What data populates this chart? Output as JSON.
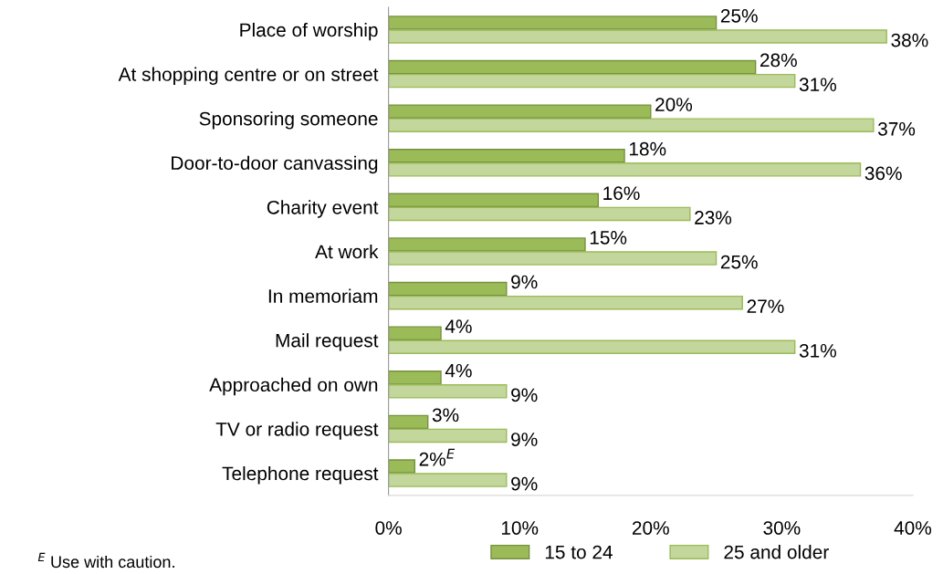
{
  "chart_data": {
    "type": "bar",
    "orientation": "horizontal",
    "categories": [
      "Place of worship",
      "At shopping centre or on street",
      "Sponsoring someone",
      "Door-to-door canvassing",
      "Charity event",
      "At work",
      "In memoriam",
      "Mail request",
      "Approached on own",
      "TV or radio request",
      "Telephone request"
    ],
    "series": [
      {
        "name": "15 to 24",
        "color": "#9bbb59",
        "values": [
          25,
          28,
          20,
          18,
          16,
          15,
          9,
          4,
          4,
          3,
          2
        ],
        "value_labels": [
          "25%",
          "28%",
          "20%",
          "18%",
          "16%",
          "15%",
          "9%",
          "4%",
          "4%",
          "3%",
          "2%$^{E}$"
        ]
      },
      {
        "name": "25 and older",
        "color": "#c3d69b",
        "values": [
          38,
          31,
          37,
          36,
          23,
          25,
          27,
          31,
          9,
          9,
          9
        ],
        "value_labels": [
          "38%",
          "31%",
          "37%",
          "36%",
          "23%",
          "25%",
          "27%",
          "31%",
          "9%",
          "9%",
          "9%"
        ]
      }
    ],
    "xlim": [
      0,
      40
    ],
    "xticks": [
      {
        "value": 0,
        "label": "0%"
      },
      {
        "value": 10,
        "label": "10%"
      },
      {
        "value": 20,
        "label": "20%"
      },
      {
        "value": 30,
        "label": "30%"
      },
      {
        "value": 40,
        "label": "40%"
      }
    ],
    "grid": false,
    "legend": "bottom",
    "annotations": [
      "$^{E}$ Use with caution."
    ]
  }
}
